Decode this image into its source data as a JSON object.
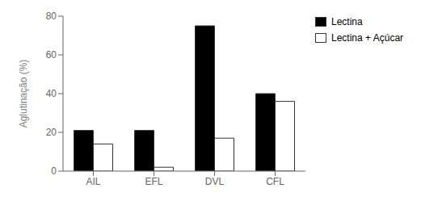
{
  "chart_data": {
    "type": "bar",
    "categories": [
      "AIL",
      "EFL",
      "DVL",
      "CFL"
    ],
    "series": [
      {
        "name": "Lectina",
        "color": "#000000",
        "values": [
          21,
          21,
          75,
          40
        ]
      },
      {
        "name": "Lectina + Açúcar",
        "color": "#ffffff",
        "values": [
          14,
          2,
          17,
          36
        ]
      }
    ],
    "ylabel": "Aglutinação (%)",
    "ylim": [
      0,
      80
    ],
    "yticks": [
      0,
      20,
      40,
      60,
      80
    ],
    "grid": false,
    "legend": "upper right"
  }
}
